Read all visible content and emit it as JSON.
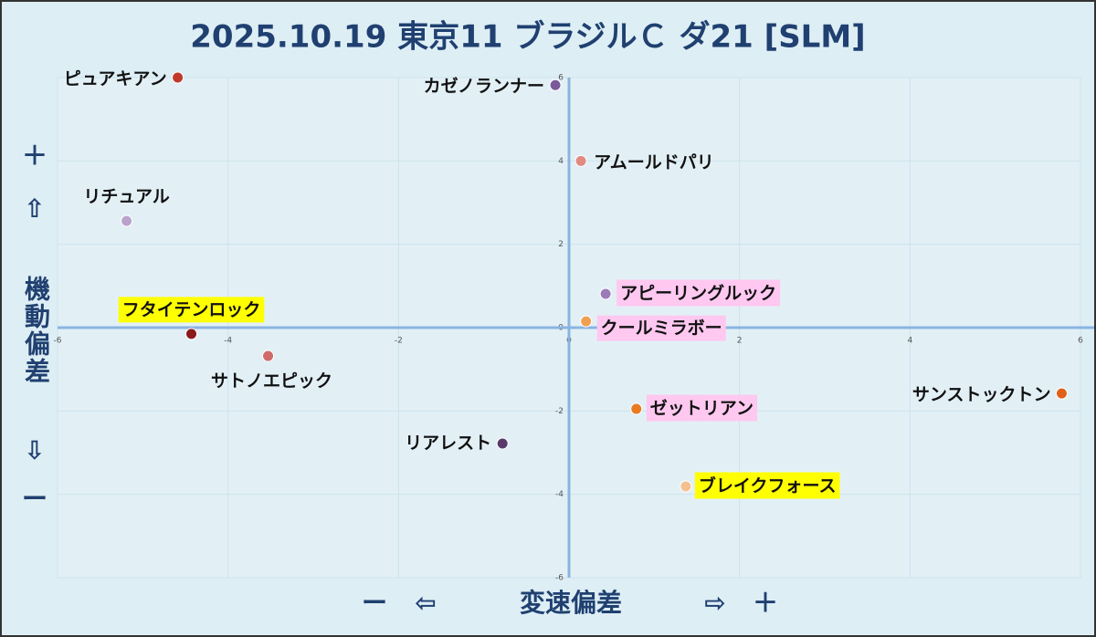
{
  "chart_data": {
    "type": "scatter",
    "title": "2025.10.19 東京11 ブラジルＣ ダ21 [SLM]",
    "x_label_parts": [
      "ー",
      "⇦",
      "変速偏差",
      "⇨",
      "＋"
    ],
    "y_label_parts": [
      "＋",
      "⇧",
      "機動偏差",
      "⇩",
      "ー"
    ],
    "xlim": [
      -6,
      6
    ],
    "ylim": [
      -6,
      6
    ],
    "xticks": [
      -6,
      -4,
      -2,
      0,
      2,
      4,
      6
    ],
    "yticks": [
      -6,
      -4,
      -2,
      0,
      2,
      4,
      6
    ],
    "grid": true,
    "points": [
      {
        "name": "ピュアキアン",
        "x": -4.59,
        "y": 6.0,
        "color": "#c0392b"
      },
      {
        "name": "カゼノランナー",
        "x": -0.16,
        "y": 5.82,
        "color": "#7b5a9a"
      },
      {
        "name": "アムールドパリ",
        "x": 0.14,
        "y": 4.0,
        "color": "#e08a80"
      },
      {
        "name": "リチュアル",
        "x": -5.19,
        "y": 2.56,
        "color": "#b9a3cc"
      },
      {
        "name": "フタイテンロック",
        "x": -4.43,
        "y": -0.15,
        "color": "#8b1a1a",
        "highlight": "#ffff00"
      },
      {
        "name": "サトノエピック",
        "x": -3.53,
        "y": -0.68,
        "color": "#d06a6a"
      },
      {
        "name": "アピーリングルック",
        "x": 0.43,
        "y": 0.81,
        "color": "#9b7bb8",
        "highlight": "#ffc8f0"
      },
      {
        "name": "クールミラボー",
        "x": 0.2,
        "y": 0.15,
        "color": "#f0a050",
        "highlight": "#ffc8f0"
      },
      {
        "name": "ゼットリアン",
        "x": 0.79,
        "y": -1.95,
        "color": "#e87a20",
        "highlight": "#ffc8f0"
      },
      {
        "name": "サンストックトン",
        "x": 5.78,
        "y": -1.58,
        "color": "#e0601a"
      },
      {
        "name": "リアレスト",
        "x": -0.78,
        "y": -2.78,
        "color": "#5a3a6a"
      },
      {
        "name": "ブレイクフォース",
        "x": 1.37,
        "y": -3.81,
        "color": "#f4c090",
        "highlight": "#ffff00"
      }
    ]
  }
}
